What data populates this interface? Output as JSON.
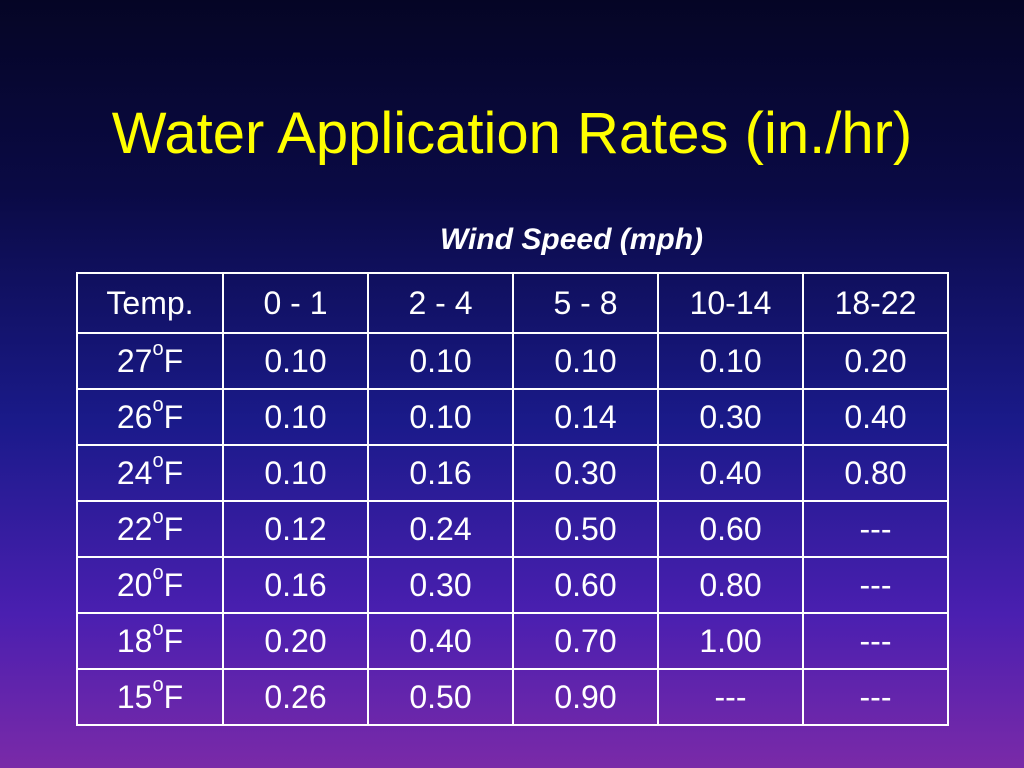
{
  "title": "Water Application Rates (in./hr)",
  "subtitle": "Wind Speed (mph)",
  "table": {
    "header": [
      "Temp.",
      "0 - 1",
      "2 - 4",
      "5 - 8",
      "10-14",
      "18-22"
    ],
    "rows": [
      {
        "temp": "27",
        "deg": "o",
        "unit": "F",
        "values": [
          "0.10",
          "0.10",
          "0.10",
          "0.10",
          "0.20"
        ]
      },
      {
        "temp": "26",
        "deg": "o",
        "unit": "F",
        "values": [
          "0.10",
          "0.10",
          "0.14",
          "0.30",
          "0.40"
        ]
      },
      {
        "temp": "24",
        "deg": "o",
        "unit": "F",
        "values": [
          "0.10",
          "0.16",
          "0.30",
          "0.40",
          "0.80"
        ]
      },
      {
        "temp": "22",
        "deg": "o",
        "unit": "F",
        "values": [
          "0.12",
          "0.24",
          "0.50",
          "0.60",
          "---"
        ]
      },
      {
        "temp": "20",
        "deg": "o",
        "unit": "F",
        "values": [
          "0.16",
          "0.30",
          "0.60",
          "0.80",
          "---"
        ]
      },
      {
        "temp": "18",
        "deg": "o",
        "unit": "F",
        "values": [
          "0.20",
          "0.40",
          "0.70",
          "1.00",
          "---"
        ]
      },
      {
        "temp": "15",
        "deg": "o",
        "unit": "F",
        "values": [
          "0.26",
          "0.50",
          "0.90",
          "---",
          "---"
        ]
      }
    ]
  },
  "colors": {
    "title": "#ffff00",
    "text": "#ffffff",
    "border": "#ffffff"
  }
}
